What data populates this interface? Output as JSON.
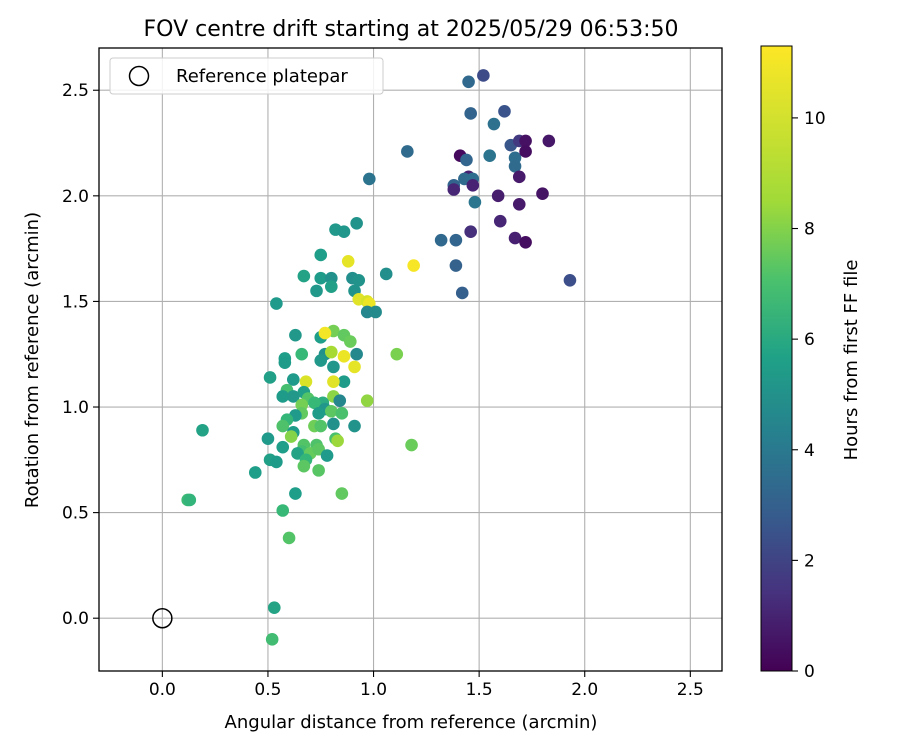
{
  "chart_data": {
    "type": "scatter",
    "title": "FOV centre drift starting at 2025/05/29 06:53:50",
    "xlabel": "Angular distance from reference (arcmin)",
    "ylabel": "Rotation from reference (arcmin)",
    "xlim": [
      -0.3,
      2.65
    ],
    "ylim": [
      -0.25,
      2.7
    ],
    "xticks": [
      0.0,
      0.5,
      1.0,
      1.5,
      2.0,
      2.5
    ],
    "xtick_labels": [
      "0.0",
      "0.5",
      "1.0",
      "1.5",
      "2.0",
      "2.5"
    ],
    "yticks": [
      0.0,
      0.5,
      1.0,
      1.5,
      2.0,
      2.5
    ],
    "ytick_labels": [
      "0.0",
      "0.5",
      "1.0",
      "1.5",
      "2.0",
      "2.5"
    ],
    "grid": true,
    "legend": {
      "placement": "top-left",
      "entries": [
        "Reference platepar"
      ]
    },
    "reference_point": {
      "x": 0.0,
      "y": 0.0,
      "marker": "hollow-circle"
    },
    "colorbar": {
      "label": "Hours from first FF file",
      "colormap": "viridis",
      "range": [
        0,
        11.3
      ],
      "ticks": [
        0,
        2,
        4,
        6,
        8,
        10
      ],
      "tick_labels": [
        "0",
        "2",
        "4",
        "6",
        "8",
        "10"
      ]
    },
    "points": [
      {
        "x": 1.52,
        "y": 2.57,
        "c": 2.6
      },
      {
        "x": 1.45,
        "y": 2.54,
        "c": 3.8
      },
      {
        "x": 1.62,
        "y": 2.4,
        "c": 2.9
      },
      {
        "x": 1.46,
        "y": 2.39,
        "c": 3.6
      },
      {
        "x": 1.57,
        "y": 2.34,
        "c": 4.2
      },
      {
        "x": 1.65,
        "y": 2.24,
        "c": 3.0
      },
      {
        "x": 1.69,
        "y": 2.26,
        "c": 1.9
      },
      {
        "x": 1.72,
        "y": 2.26,
        "c": 0.5
      },
      {
        "x": 1.83,
        "y": 2.26,
        "c": 0.7
      },
      {
        "x": 1.16,
        "y": 2.21,
        "c": 3.9
      },
      {
        "x": 1.41,
        "y": 2.19,
        "c": 0.3
      },
      {
        "x": 1.55,
        "y": 2.19,
        "c": 4.3
      },
      {
        "x": 1.67,
        "y": 2.18,
        "c": 4.0
      },
      {
        "x": 1.72,
        "y": 2.21,
        "c": 0.4
      },
      {
        "x": 1.44,
        "y": 2.17,
        "c": 3.7
      },
      {
        "x": 1.67,
        "y": 2.14,
        "c": 3.9
      },
      {
        "x": 1.69,
        "y": 2.09,
        "c": 0.8
      },
      {
        "x": 1.45,
        "y": 2.09,
        "c": 1.0
      },
      {
        "x": 1.43,
        "y": 2.08,
        "c": 3.9
      },
      {
        "x": 1.47,
        "y": 2.08,
        "c": 4.0
      },
      {
        "x": 0.98,
        "y": 2.08,
        "c": 4.3
      },
      {
        "x": 1.38,
        "y": 2.05,
        "c": 3.6
      },
      {
        "x": 1.47,
        "y": 2.05,
        "c": 1.1
      },
      {
        "x": 1.38,
        "y": 2.03,
        "c": 1.2
      },
      {
        "x": 1.59,
        "y": 2.0,
        "c": 0.9
      },
      {
        "x": 1.8,
        "y": 2.01,
        "c": 0.6
      },
      {
        "x": 1.48,
        "y": 1.97,
        "c": 4.4
      },
      {
        "x": 1.69,
        "y": 1.96,
        "c": 0.8
      },
      {
        "x": 1.6,
        "y": 1.88,
        "c": 1.2
      },
      {
        "x": 1.46,
        "y": 1.83,
        "c": 1.5
      },
      {
        "x": 1.32,
        "y": 1.79,
        "c": 3.8
      },
      {
        "x": 1.39,
        "y": 1.79,
        "c": 3.7
      },
      {
        "x": 1.67,
        "y": 1.8,
        "c": 1.0
      },
      {
        "x": 1.72,
        "y": 1.78,
        "c": 0.4
      },
      {
        "x": 1.39,
        "y": 1.67,
        "c": 3.5
      },
      {
        "x": 1.42,
        "y": 1.54,
        "c": 3.4
      },
      {
        "x": 1.93,
        "y": 1.6,
        "c": 2.7
      },
      {
        "x": 0.92,
        "y": 1.87,
        "c": 5.8
      },
      {
        "x": 0.82,
        "y": 1.84,
        "c": 6.0
      },
      {
        "x": 0.86,
        "y": 1.83,
        "c": 5.9
      },
      {
        "x": 0.75,
        "y": 1.72,
        "c": 6.3
      },
      {
        "x": 0.88,
        "y": 1.69,
        "c": 10.9
      },
      {
        "x": 1.19,
        "y": 1.67,
        "c": 11.2
      },
      {
        "x": 0.67,
        "y": 1.62,
        "c": 6.5
      },
      {
        "x": 0.75,
        "y": 1.61,
        "c": 6.2
      },
      {
        "x": 0.8,
        "y": 1.61,
        "c": 5.7
      },
      {
        "x": 0.9,
        "y": 1.61,
        "c": 5.6
      },
      {
        "x": 0.93,
        "y": 1.6,
        "c": 5.8
      },
      {
        "x": 1.06,
        "y": 1.63,
        "c": 5.6
      },
      {
        "x": 0.8,
        "y": 1.57,
        "c": 6.4
      },
      {
        "x": 0.73,
        "y": 1.55,
        "c": 6.0
      },
      {
        "x": 0.91,
        "y": 1.55,
        "c": 5.8
      },
      {
        "x": 0.93,
        "y": 1.51,
        "c": 10.8
      },
      {
        "x": 0.97,
        "y": 1.5,
        "c": 10.6
      },
      {
        "x": 0.98,
        "y": 1.49,
        "c": 11.0
      },
      {
        "x": 0.54,
        "y": 1.49,
        "c": 6.1
      },
      {
        "x": 0.97,
        "y": 1.45,
        "c": 5.2
      },
      {
        "x": 1.01,
        "y": 1.45,
        "c": 5.4
      },
      {
        "x": 0.81,
        "y": 1.36,
        "c": 8.9
      },
      {
        "x": 0.86,
        "y": 1.34,
        "c": 8.5
      },
      {
        "x": 0.75,
        "y": 1.33,
        "c": 6.3
      },
      {
        "x": 0.77,
        "y": 1.35,
        "c": 11.1
      },
      {
        "x": 0.89,
        "y": 1.31,
        "c": 8.7
      },
      {
        "x": 0.63,
        "y": 1.34,
        "c": 6.0
      },
      {
        "x": 0.77,
        "y": 1.25,
        "c": 5.7
      },
      {
        "x": 0.8,
        "y": 1.26,
        "c": 9.8
      },
      {
        "x": 0.86,
        "y": 1.24,
        "c": 11.0
      },
      {
        "x": 0.92,
        "y": 1.25,
        "c": 5.3
      },
      {
        "x": 1.11,
        "y": 1.25,
        "c": 9.0
      },
      {
        "x": 0.66,
        "y": 1.25,
        "c": 7.6
      },
      {
        "x": 0.58,
        "y": 1.23,
        "c": 6.3
      },
      {
        "x": 0.58,
        "y": 1.21,
        "c": 6.2
      },
      {
        "x": 0.75,
        "y": 1.22,
        "c": 6.0
      },
      {
        "x": 0.81,
        "y": 1.19,
        "c": 5.9
      },
      {
        "x": 0.91,
        "y": 1.19,
        "c": 10.9
      },
      {
        "x": 0.86,
        "y": 1.12,
        "c": 6.2
      },
      {
        "x": 0.81,
        "y": 1.12,
        "c": 10.8
      },
      {
        "x": 0.68,
        "y": 1.12,
        "c": 10.7
      },
      {
        "x": 0.62,
        "y": 1.13,
        "c": 6.1
      },
      {
        "x": 0.51,
        "y": 1.14,
        "c": 6.4
      },
      {
        "x": 0.59,
        "y": 1.08,
        "c": 7.9
      },
      {
        "x": 0.67,
        "y": 1.07,
        "c": 6.4
      },
      {
        "x": 0.57,
        "y": 1.05,
        "c": 6.2
      },
      {
        "x": 0.62,
        "y": 1.05,
        "c": 6.0
      },
      {
        "x": 0.69,
        "y": 1.04,
        "c": 8.2
      },
      {
        "x": 0.81,
        "y": 1.05,
        "c": 9.3
      },
      {
        "x": 0.84,
        "y": 1.03,
        "c": 5.2
      },
      {
        "x": 0.97,
        "y": 1.03,
        "c": 9.4
      },
      {
        "x": 0.76,
        "y": 1.02,
        "c": 7.0
      },
      {
        "x": 0.72,
        "y": 1.02,
        "c": 7.6
      },
      {
        "x": 0.66,
        "y": 1.01,
        "c": 8.9
      },
      {
        "x": 0.77,
        "y": 0.99,
        "c": 5.9
      },
      {
        "x": 0.8,
        "y": 0.98,
        "c": 8.4
      },
      {
        "x": 0.85,
        "y": 0.97,
        "c": 8.0
      },
      {
        "x": 0.74,
        "y": 0.97,
        "c": 6.2
      },
      {
        "x": 0.66,
        "y": 0.97,
        "c": 8.5
      },
      {
        "x": 0.63,
        "y": 0.96,
        "c": 6.1
      },
      {
        "x": 0.59,
        "y": 0.94,
        "c": 7.5
      },
      {
        "x": 0.57,
        "y": 0.91,
        "c": 8.1
      },
      {
        "x": 0.72,
        "y": 0.91,
        "c": 8.8
      },
      {
        "x": 0.75,
        "y": 0.91,
        "c": 8.2
      },
      {
        "x": 0.81,
        "y": 0.92,
        "c": 5.7
      },
      {
        "x": 0.91,
        "y": 0.91,
        "c": 5.8
      },
      {
        "x": 0.62,
        "y": 0.88,
        "c": 6.2
      },
      {
        "x": 0.61,
        "y": 0.86,
        "c": 9.2
      },
      {
        "x": 0.82,
        "y": 0.85,
        "c": 8.0
      },
      {
        "x": 0.83,
        "y": 0.84,
        "c": 9.6
      },
      {
        "x": 0.19,
        "y": 0.89,
        "c": 6.5
      },
      {
        "x": 0.5,
        "y": 0.85,
        "c": 6.1
      },
      {
        "x": 0.57,
        "y": 0.81,
        "c": 6.3
      },
      {
        "x": 0.67,
        "y": 0.82,
        "c": 8.2
      },
      {
        "x": 0.73,
        "y": 0.82,
        "c": 8.1
      },
      {
        "x": 0.66,
        "y": 0.79,
        "c": 7.9
      },
      {
        "x": 0.7,
        "y": 0.78,
        "c": 8.6
      },
      {
        "x": 0.74,
        "y": 0.8,
        "c": 8.4
      },
      {
        "x": 0.78,
        "y": 0.77,
        "c": 6.1
      },
      {
        "x": 0.64,
        "y": 0.78,
        "c": 6.5
      },
      {
        "x": 0.68,
        "y": 0.75,
        "c": 7.5
      },
      {
        "x": 0.51,
        "y": 0.75,
        "c": 6.4
      },
      {
        "x": 0.54,
        "y": 0.74,
        "c": 6.2
      },
      {
        "x": 0.67,
        "y": 0.72,
        "c": 8.4
      },
      {
        "x": 0.74,
        "y": 0.7,
        "c": 8.3
      },
      {
        "x": 0.44,
        "y": 0.69,
        "c": 6.3
      },
      {
        "x": 1.18,
        "y": 0.82,
        "c": 8.7
      },
      {
        "x": 0.63,
        "y": 0.59,
        "c": 6.3
      },
      {
        "x": 0.85,
        "y": 0.59,
        "c": 8.5
      },
      {
        "x": 0.12,
        "y": 0.56,
        "c": 7.7
      },
      {
        "x": 0.13,
        "y": 0.56,
        "c": 7.4
      },
      {
        "x": 0.57,
        "y": 0.51,
        "c": 7.6
      },
      {
        "x": 0.6,
        "y": 0.38,
        "c": 8.2
      },
      {
        "x": 0.53,
        "y": 0.05,
        "c": 6.6
      },
      {
        "x": 0.52,
        "y": -0.1,
        "c": 7.8
      }
    ]
  }
}
